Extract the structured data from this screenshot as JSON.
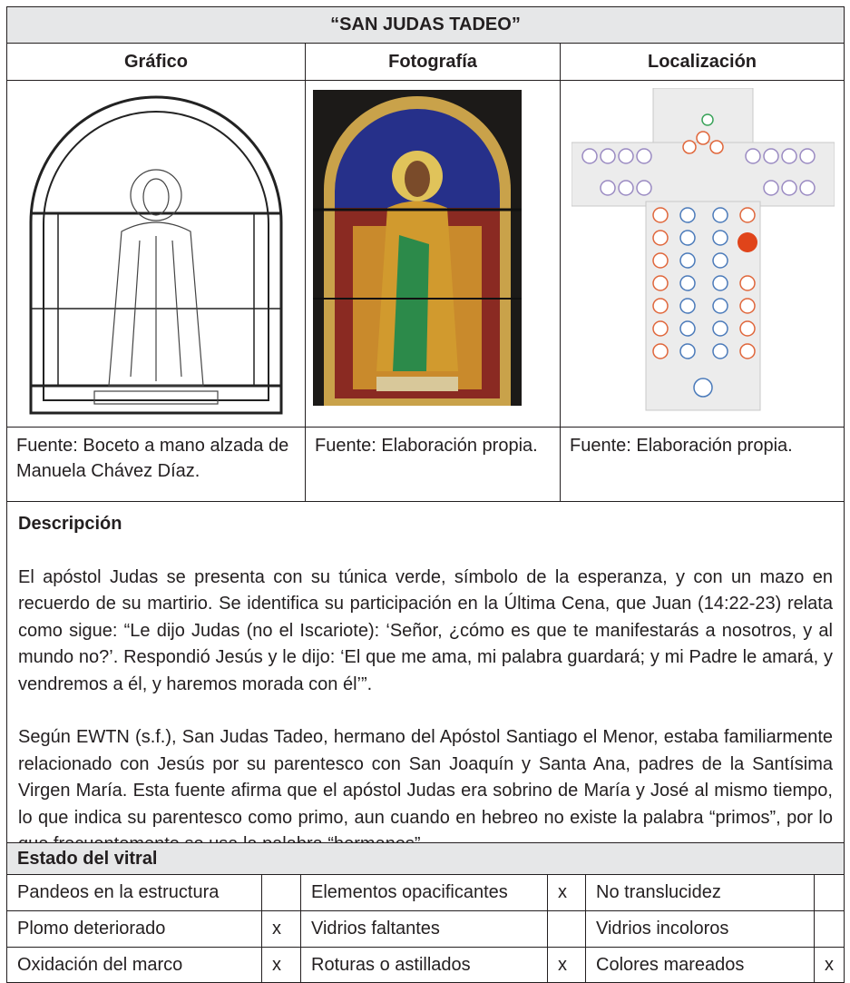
{
  "title": "“SAN JUDAS TADEO”",
  "columns": [
    "Gráfico",
    "Fotografía",
    "Localización"
  ],
  "sources": [
    "Fuente: Boceto a mano alzada de Manuela Chávez Díaz.",
    "Fuente: Elaboración propia.",
    "Fuente: Elaboración propia."
  ],
  "description": {
    "heading": "Descripción",
    "paragraphs": [
      "El apóstol Judas se presenta con su túnica verde, símbolo de la esperanza, y con un mazo en recuerdo de su martirio. Se identifica su participación en la Última Cena, que Juan (14:22-23) relata como sigue: “Le dijo Judas (no el Iscariote): ‘Señor, ¿cómo es que te manifestarás a nosotros, y al mundo no?’. Respondió Jesús y le dijo: ‘El que me ama, mi palabra guardará; y mi Padre le amará, y vendremos a él, y haremos morada con él’”.",
      "Según EWTN (s.f.), San Judas Tadeo, hermano del Apóstol Santiago el Menor, estaba familiarmente relacionado con Jesús por su parentesco con San Joaquín y Santa Ana, padres de la Santísima Virgen María. Esta fuente afirma que el apóstol Judas era sobrino de María y José al mismo tiempo, lo que indica su parentesco como primo, aun cuando en hebreo no existe la palabra “primos”, por lo que frecuentemente se usa la palabra “hermanos”."
    ]
  },
  "status": {
    "heading": "Estado del vitral",
    "rows": [
      [
        {
          "label": "Pandeos en la estructura",
          "mark": null
        },
        {
          "label": "Elementos opacificantes",
          "mark": "x"
        },
        {
          "label": "No translucidez",
          "mark": null
        }
      ],
      [
        {
          "label": "Plomo deteriorado",
          "mark": "x"
        },
        {
          "label": "Vidrios faltantes",
          "mark": null
        },
        {
          "label": "Vidrios incoloros",
          "mark": null
        }
      ],
      [
        {
          "label": "Oxidación del marco",
          "mark": "x"
        },
        {
          "label": "Roturas o astillados",
          "mark": "x"
        },
        {
          "label": "Colores mareados",
          "mark": "x"
        }
      ]
    ]
  }
}
